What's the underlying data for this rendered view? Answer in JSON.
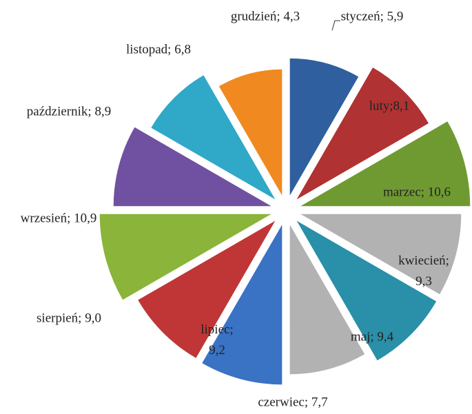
{
  "chart_data": {
    "type": "polar-area",
    "values": [
      5.9,
      8.1,
      10.6,
      9.3,
      9.4,
      7.7,
      9.2,
      9.0,
      10.9,
      8.9,
      6.8,
      4.3
    ],
    "value_labels": [
      "styczeń; 5,9",
      "luty;8,1",
      "marzec; 10,6",
      "kwiecień; 9,3",
      "maj; 9,4",
      "czerwiec; 7,7",
      "lipiec; 9,2",
      "sierpień; 9,0",
      "wrzesień; 10,9",
      "październik; 8,9",
      "listopad; 6,8",
      "grudzień; 4,3"
    ],
    "colors": [
      "#2f5f9e",
      "#b03232",
      "#6f9a32",
      "#b2b2b2",
      "#2a8fa8",
      "#b2b2b2",
      "#3a72c4",
      "#c03636",
      "#8ab43a",
      "#7050a0",
      "#30a8c8",
      "#f08a20"
    ]
  }
}
